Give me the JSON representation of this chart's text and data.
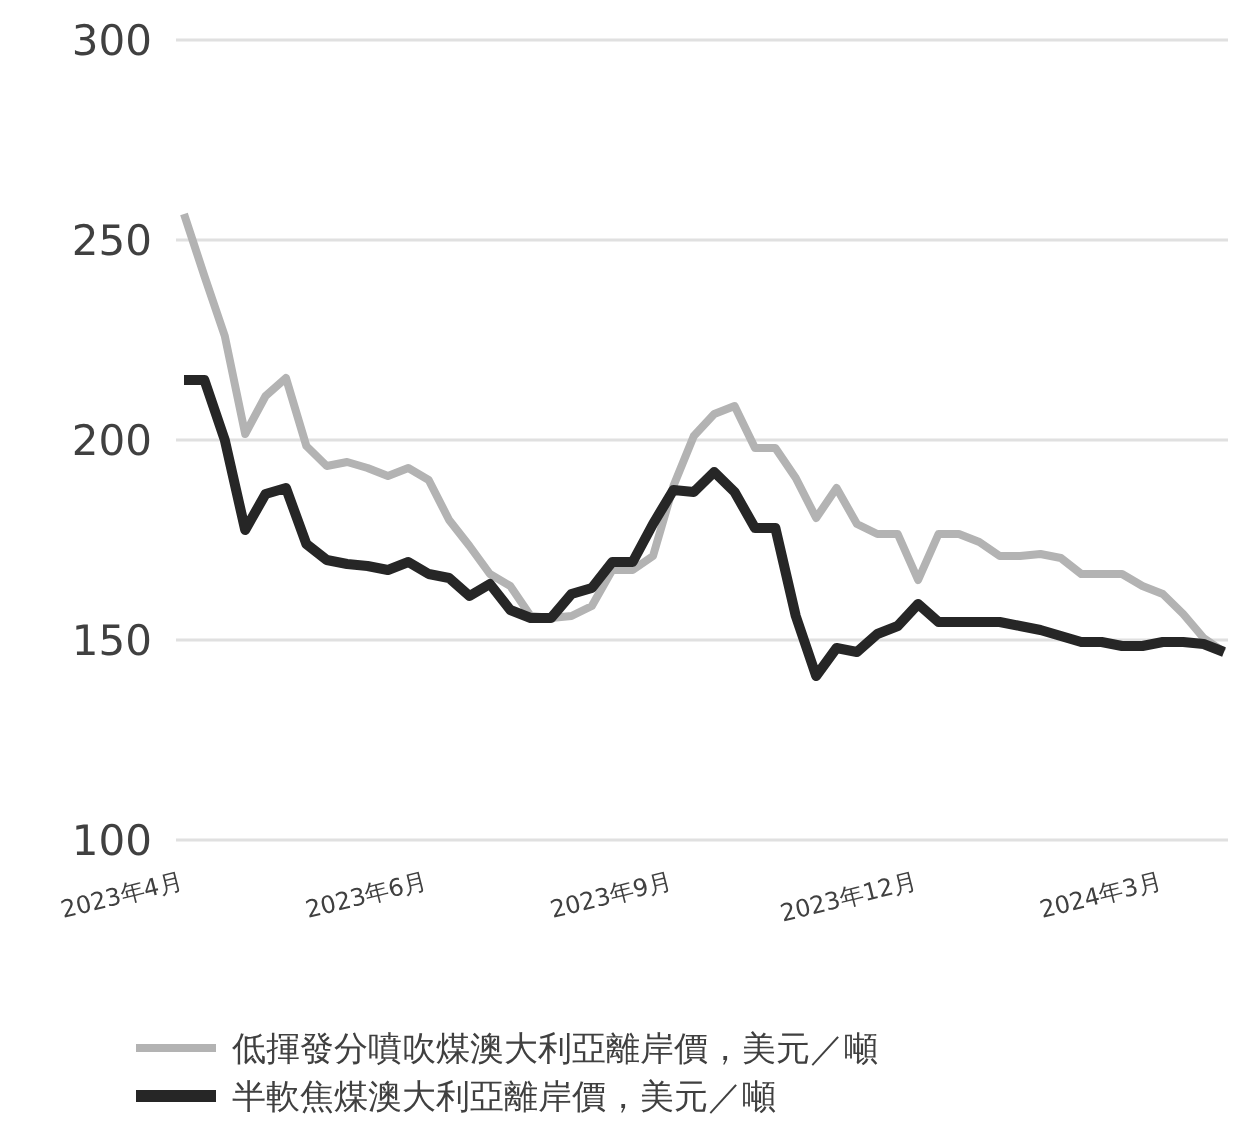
{
  "chart_data": {
    "type": "line",
    "categories": [
      "2023年4月",
      null,
      null,
      null,
      null,
      null,
      null,
      null,
      null,
      null,
      null,
      null,
      "2023年6月",
      null,
      null,
      null,
      null,
      null,
      null,
      null,
      null,
      null,
      null,
      null,
      "2023年9月",
      null,
      null,
      null,
      null,
      null,
      null,
      null,
      null,
      null,
      null,
      null,
      "2023年12月",
      null,
      null,
      null,
      null,
      null,
      null,
      null,
      null,
      null,
      null,
      null,
      "2024年3月",
      null,
      null,
      null
    ],
    "series": [
      {
        "name": "低揮發分噴吹煤澳大利亞離岸價，美元／噸",
        "color": "#b3b3b3",
        "values": [
          256.5,
          241,
          226,
          201.5,
          211,
          215.5,
          198.5,
          193.5,
          194.5,
          193,
          191,
          193,
          190,
          180,
          173.5,
          166.5,
          163.5,
          156,
          155.5,
          156,
          158.5,
          167.5,
          167.5,
          171,
          188.5,
          201,
          206.5,
          208.5,
          198,
          198,
          190.5,
          180.5,
          188,
          179,
          176.5,
          176.5,
          165,
          176.5,
          176.5,
          174.5,
          171,
          171,
          171.5,
          170.5,
          166.5,
          166.5,
          166.5,
          163.5,
          161.5,
          156.5,
          150.5,
          147
        ]
      },
      {
        "name": "半軟焦煤澳大利亞離岸價，美元／噸",
        "color": "#262626",
        "values": [
          215,
          215,
          200,
          177.5,
          186.5,
          188,
          174,
          170,
          169,
          168.5,
          167.5,
          169.5,
          166.5,
          165.5,
          161,
          164,
          157.5,
          155.5,
          155.5,
          161.5,
          163,
          169.5,
          169.5,
          179,
          187.5,
          187,
          192,
          187,
          178,
          178,
          156,
          141,
          148,
          147,
          151.5,
          153.5,
          159,
          154.5,
          154.5,
          154.5,
          154.5,
          153.5,
          152.5,
          151,
          149.5,
          149.5,
          148.5,
          148.5,
          149.5,
          149.5,
          149,
          147
        ]
      }
    ],
    "ylim": [
      100,
      300
    ],
    "yticks": [
      100,
      150,
      200,
      250,
      300
    ],
    "grid": "y",
    "legend": "bottom",
    "marker": "none",
    "line_style": "solid"
  }
}
